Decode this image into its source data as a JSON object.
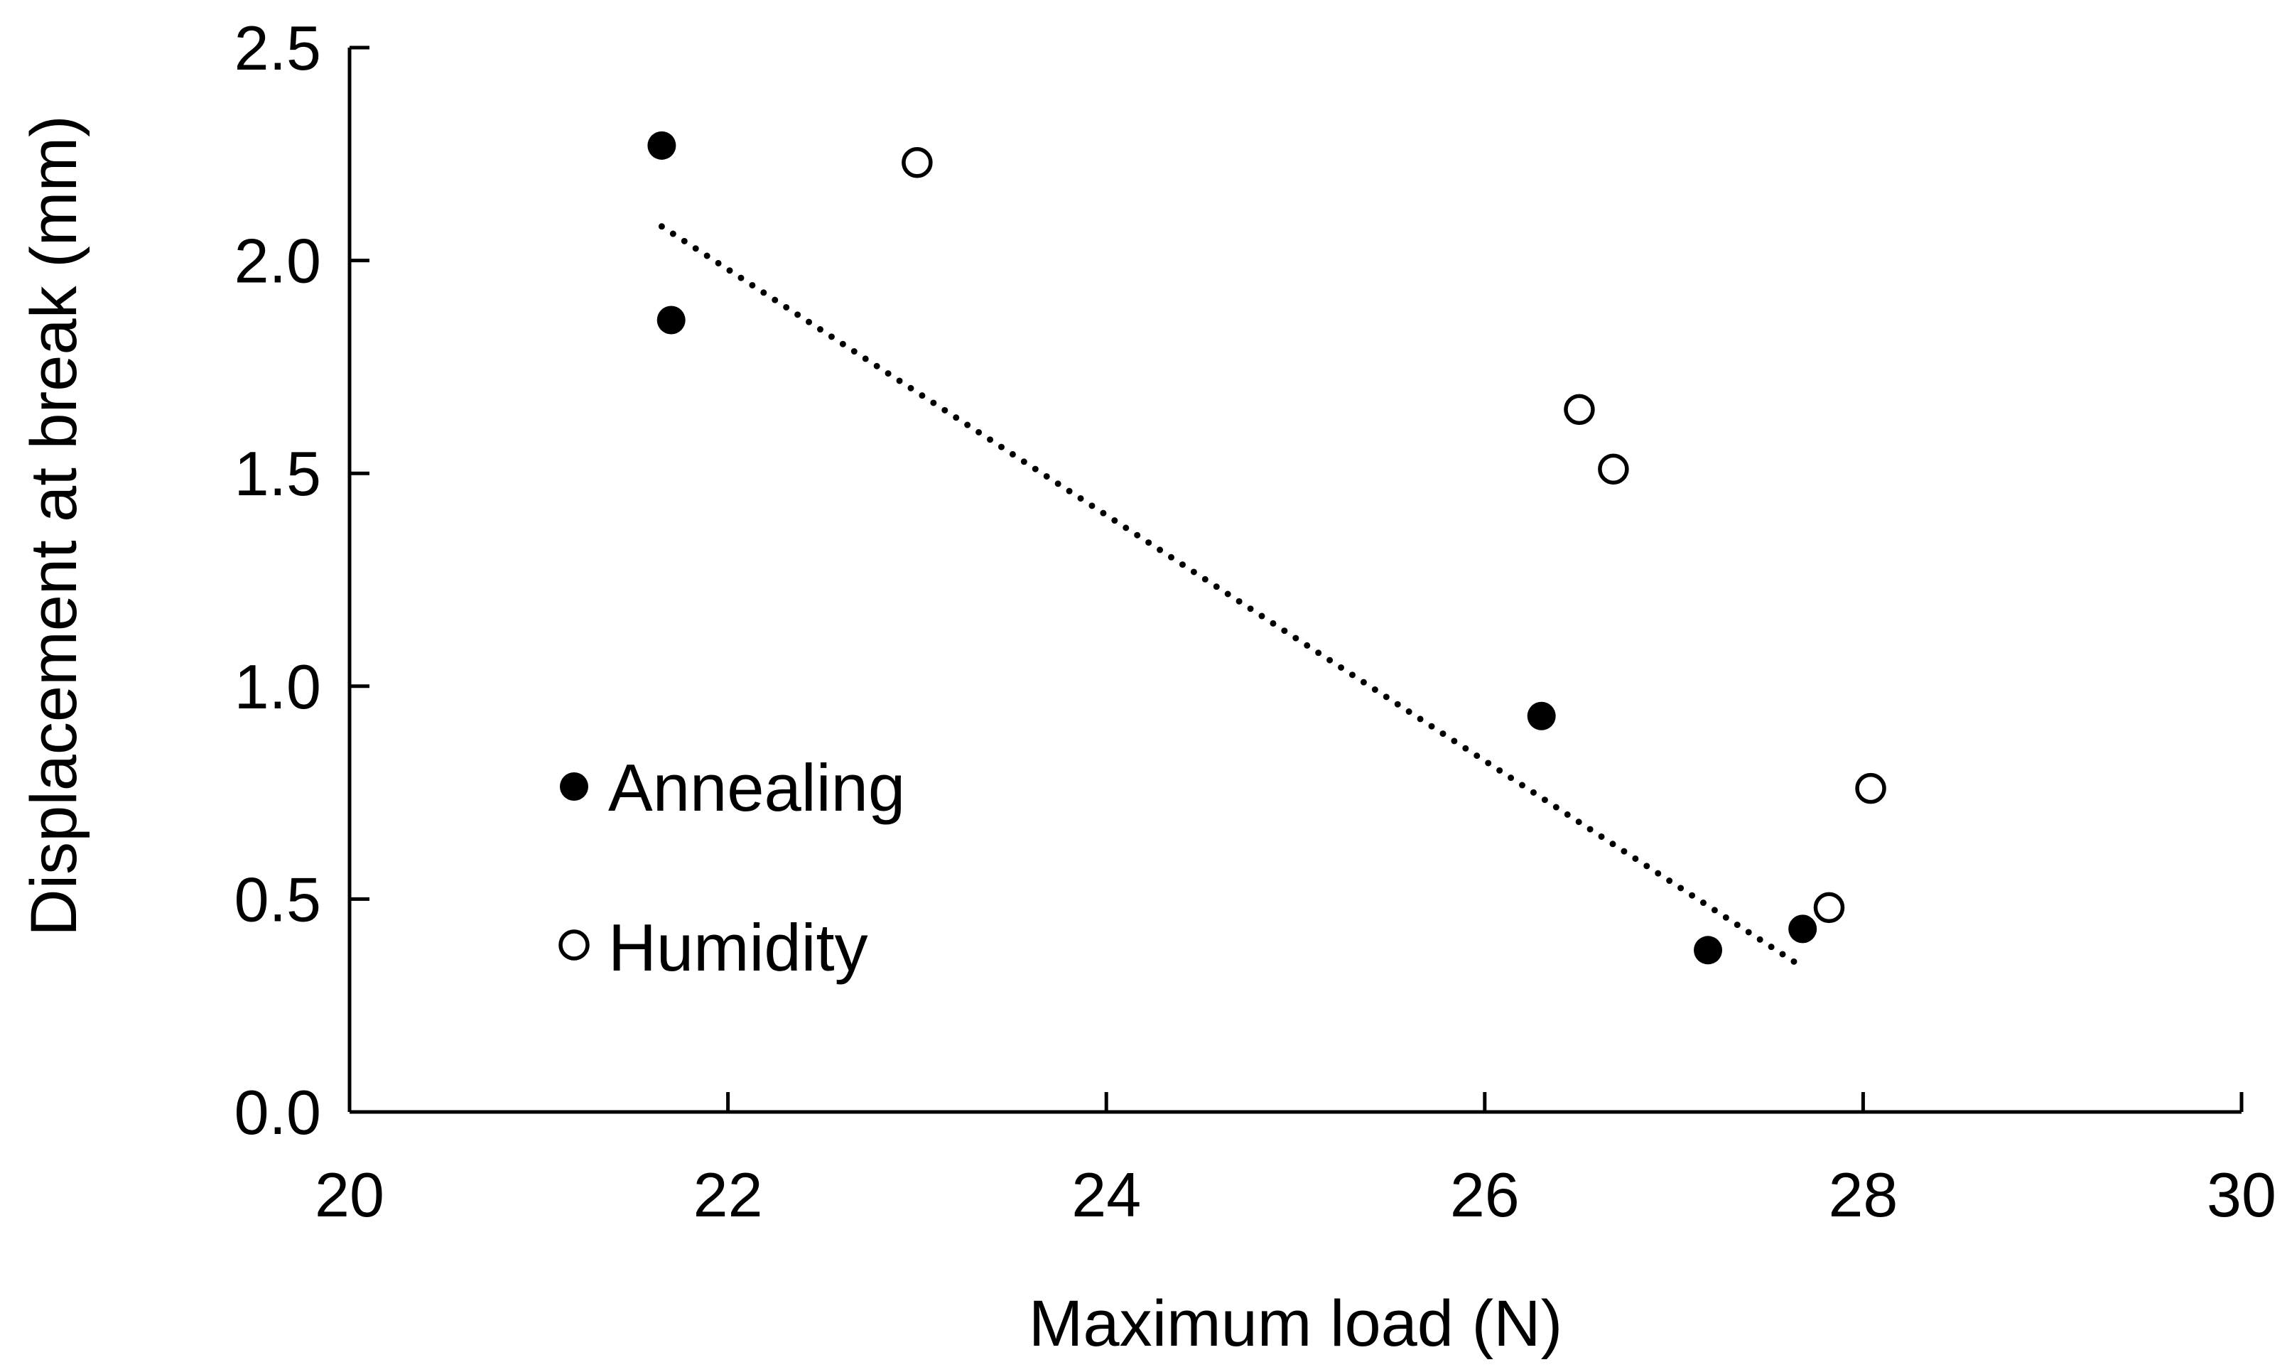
{
  "chart_data": {
    "type": "scatter",
    "title": "",
    "xlabel": "Maximum load (N)",
    "ylabel": "Displacement at break (mm)",
    "xlim": [
      20,
      30
    ],
    "ylim": [
      0.0,
      2.5
    ],
    "xticks": [
      20,
      22,
      24,
      26,
      28,
      30
    ],
    "xtick_labels": [
      "20",
      "22",
      "24",
      "26",
      "28",
      "30"
    ],
    "yticks": [
      0.0,
      0.5,
      1.0,
      1.5,
      2.0,
      2.5
    ],
    "ytick_labels": [
      "0.0",
      "0.5",
      "1.0",
      "1.5",
      "2.0",
      "2.5"
    ],
    "grid": false,
    "legend_position": "left",
    "series": [
      {
        "name": "Annealing",
        "marker": "filled-circle",
        "color": "#000000",
        "x": [
          21.65,
          21.7,
          26.3,
          27.18,
          27.68
        ],
        "y": [
          2.27,
          1.86,
          0.93,
          0.38,
          0.43
        ]
      },
      {
        "name": "Humidity",
        "marker": "open-circle",
        "color": "#000000",
        "x": [
          23.0,
          26.5,
          26.68,
          28.04,
          27.82
        ],
        "y": [
          2.23,
          1.65,
          1.51,
          0.76,
          0.48
        ]
      }
    ],
    "trendline": {
      "style": "dotted",
      "color": "#000000",
      "x": [
        21.65,
        27.68
      ],
      "y": [
        2.08,
        0.34
      ]
    }
  }
}
